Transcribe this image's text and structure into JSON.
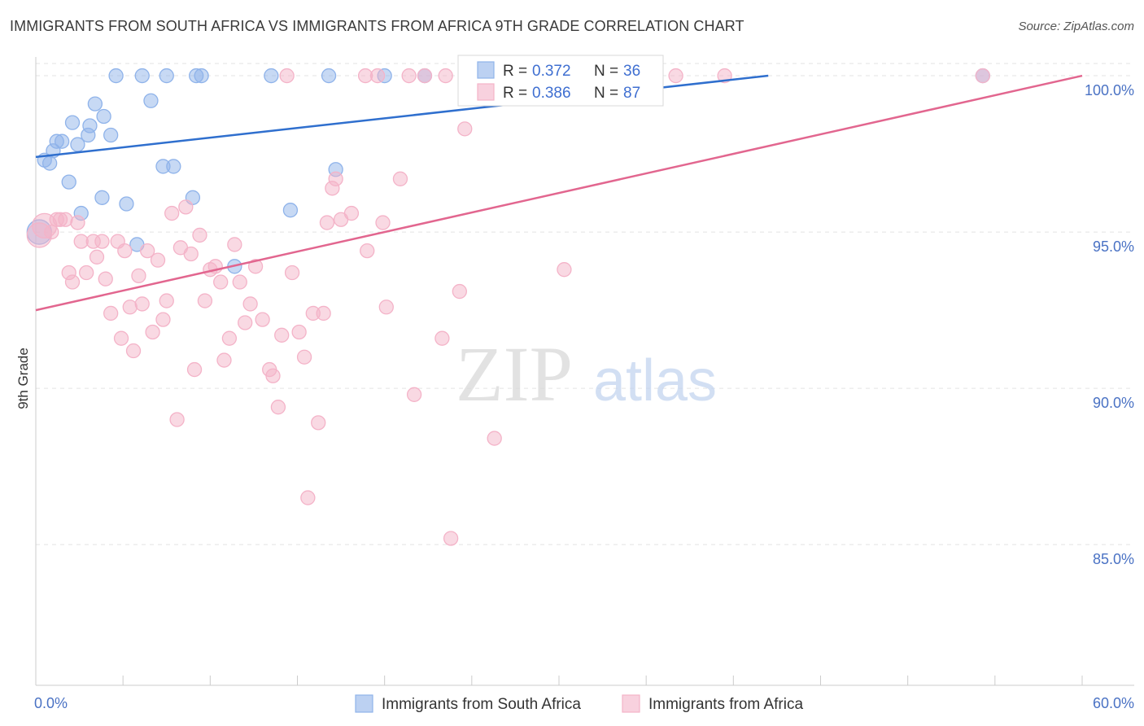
{
  "title": "IMMIGRANTS FROM SOUTH AFRICA VS IMMIGRANTS FROM AFRICA 9TH GRADE CORRELATION CHART",
  "source": "Source: ZipAtlas.com",
  "watermark": {
    "zip": "ZIP",
    "atlas": "atlas"
  },
  "chart_data": {
    "type": "scatter",
    "ylabel": "9th Grade",
    "xlabel": "",
    "xlim": [
      0,
      60
    ],
    "ylim": [
      80.5,
      100.6
    ],
    "x_tick_labels": [
      {
        "value": 0,
        "label": "0.0%"
      },
      {
        "value": 60,
        "label": "60.0%"
      }
    ],
    "y_ticks": [
      {
        "value": 100,
        "label": "100.0%"
      },
      {
        "value": 95,
        "label": "95.0%"
      },
      {
        "value": 90,
        "label": "90.0%"
      },
      {
        "value": 85,
        "label": "85.0%"
      }
    ],
    "grid": true,
    "legend_position": "top-center",
    "series": [
      {
        "name": "Immigrants from South Africa",
        "color": "#8fb3ea",
        "line_color": "#2f6fce",
        "R": "0.372",
        "N": "36",
        "trend": {
          "x": [
            0,
            42
          ],
          "y": [
            97.4,
            100.0
          ]
        },
        "points": [
          {
            "x": 0.2,
            "y": 95.0,
            "big": true
          },
          {
            "x": 0.5,
            "y": 97.3
          },
          {
            "x": 0.8,
            "y": 97.2
          },
          {
            "x": 1.0,
            "y": 97.6
          },
          {
            "x": 1.2,
            "y": 97.9
          },
          {
            "x": 1.5,
            "y": 97.9
          },
          {
            "x": 1.9,
            "y": 96.6
          },
          {
            "x": 2.1,
            "y": 98.5
          },
          {
            "x": 2.4,
            "y": 97.8
          },
          {
            "x": 2.6,
            "y": 95.6
          },
          {
            "x": 3.0,
            "y": 98.1
          },
          {
            "x": 3.1,
            "y": 98.4
          },
          {
            "x": 3.4,
            "y": 99.1
          },
          {
            "x": 3.8,
            "y": 96.1
          },
          {
            "x": 3.9,
            "y": 98.7
          },
          {
            "x": 4.3,
            "y": 98.1
          },
          {
            "x": 4.6,
            "y": 100.0
          },
          {
            "x": 5.2,
            "y": 95.9
          },
          {
            "x": 5.8,
            "y": 94.6
          },
          {
            "x": 6.1,
            "y": 100.0
          },
          {
            "x": 6.6,
            "y": 99.2
          },
          {
            "x": 7.3,
            "y": 97.1
          },
          {
            "x": 7.5,
            "y": 100.0
          },
          {
            "x": 7.9,
            "y": 97.1
          },
          {
            "x": 9.0,
            "y": 96.1
          },
          {
            "x": 9.2,
            "y": 100.0
          },
          {
            "x": 9.5,
            "y": 100.0
          },
          {
            "x": 11.4,
            "y": 93.9
          },
          {
            "x": 13.5,
            "y": 100.0
          },
          {
            "x": 14.6,
            "y": 95.7
          },
          {
            "x": 16.8,
            "y": 100.0
          },
          {
            "x": 17.2,
            "y": 97.0
          },
          {
            "x": 20.0,
            "y": 100.0
          },
          {
            "x": 22.3,
            "y": 100.0
          },
          {
            "x": 25.8,
            "y": 100.0
          },
          {
            "x": 54.3,
            "y": 100.0
          }
        ]
      },
      {
        "name": "Immigrants from Africa",
        "color": "#f4b3c8",
        "line_color": "#e2668f",
        "R": "0.386",
        "N": "87",
        "trend": {
          "x": [
            0,
            60
          ],
          "y": [
            92.5,
            100.0
          ]
        },
        "points": [
          {
            "x": 0.2,
            "y": 94.9,
            "big": true
          },
          {
            "x": 0.5,
            "y": 95.2,
            "big": true
          },
          {
            "x": 0.9,
            "y": 95.0
          },
          {
            "x": 1.2,
            "y": 95.4
          },
          {
            "x": 1.4,
            "y": 95.4
          },
          {
            "x": 1.7,
            "y": 95.4
          },
          {
            "x": 1.9,
            "y": 93.7
          },
          {
            "x": 2.1,
            "y": 93.4
          },
          {
            "x": 2.4,
            "y": 95.3
          },
          {
            "x": 2.6,
            "y": 94.7
          },
          {
            "x": 2.9,
            "y": 93.7
          },
          {
            "x": 3.3,
            "y": 94.7
          },
          {
            "x": 3.5,
            "y": 94.2
          },
          {
            "x": 3.8,
            "y": 94.7
          },
          {
            "x": 4.0,
            "y": 93.5
          },
          {
            "x": 4.3,
            "y": 92.4
          },
          {
            "x": 4.7,
            "y": 94.7
          },
          {
            "x": 4.9,
            "y": 91.6
          },
          {
            "x": 5.1,
            "y": 94.4
          },
          {
            "x": 5.4,
            "y": 92.6
          },
          {
            "x": 5.6,
            "y": 91.2
          },
          {
            "x": 5.9,
            "y": 93.6
          },
          {
            "x": 6.1,
            "y": 92.7
          },
          {
            "x": 6.4,
            "y": 94.4
          },
          {
            "x": 6.7,
            "y": 91.8
          },
          {
            "x": 7.0,
            "y": 94.1
          },
          {
            "x": 7.3,
            "y": 92.2
          },
          {
            "x": 7.5,
            "y": 92.8
          },
          {
            "x": 7.8,
            "y": 95.6
          },
          {
            "x": 8.1,
            "y": 89.0
          },
          {
            "x": 8.3,
            "y": 94.5
          },
          {
            "x": 8.6,
            "y": 95.8
          },
          {
            "x": 8.9,
            "y": 94.3
          },
          {
            "x": 9.1,
            "y": 90.6
          },
          {
            "x": 9.4,
            "y": 94.9
          },
          {
            "x": 9.7,
            "y": 92.8
          },
          {
            "x": 10.0,
            "y": 93.8
          },
          {
            "x": 10.3,
            "y": 93.9
          },
          {
            "x": 10.6,
            "y": 93.4
          },
          {
            "x": 10.8,
            "y": 90.9
          },
          {
            "x": 11.1,
            "y": 91.6
          },
          {
            "x": 11.4,
            "y": 94.6
          },
          {
            "x": 11.7,
            "y": 93.4
          },
          {
            "x": 12.0,
            "y": 92.1
          },
          {
            "x": 12.3,
            "y": 92.7
          },
          {
            "x": 12.6,
            "y": 93.9
          },
          {
            "x": 13.0,
            "y": 92.2
          },
          {
            "x": 13.4,
            "y": 90.6
          },
          {
            "x": 13.6,
            "y": 90.4
          },
          {
            "x": 13.9,
            "y": 89.4
          },
          {
            "x": 14.1,
            "y": 91.7
          },
          {
            "x": 14.4,
            "y": 100.0
          },
          {
            "x": 14.7,
            "y": 93.7
          },
          {
            "x": 15.1,
            "y": 91.8
          },
          {
            "x": 15.4,
            "y": 91.0
          },
          {
            "x": 15.6,
            "y": 86.5
          },
          {
            "x": 15.9,
            "y": 92.4
          },
          {
            "x": 16.2,
            "y": 88.9
          },
          {
            "x": 16.5,
            "y": 92.4
          },
          {
            "x": 16.7,
            "y": 95.3
          },
          {
            "x": 17.0,
            "y": 96.4
          },
          {
            "x": 17.2,
            "y": 96.7
          },
          {
            "x": 17.5,
            "y": 95.4
          },
          {
            "x": 18.1,
            "y": 95.6
          },
          {
            "x": 18.9,
            "y": 100.0
          },
          {
            "x": 19.0,
            "y": 94.4
          },
          {
            "x": 19.6,
            "y": 100.0
          },
          {
            "x": 19.9,
            "y": 95.3
          },
          {
            "x": 20.1,
            "y": 92.6
          },
          {
            "x": 20.9,
            "y": 96.7
          },
          {
            "x": 21.4,
            "y": 100.0
          },
          {
            "x": 21.7,
            "y": 89.8
          },
          {
            "x": 22.3,
            "y": 100.0
          },
          {
            "x": 23.3,
            "y": 91.6
          },
          {
            "x": 23.5,
            "y": 100.0
          },
          {
            "x": 23.8,
            "y": 85.2
          },
          {
            "x": 24.3,
            "y": 93.1
          },
          {
            "x": 24.6,
            "y": 98.3
          },
          {
            "x": 24.8,
            "y": 100.0
          },
          {
            "x": 26.3,
            "y": 88.4
          },
          {
            "x": 29.3,
            "y": 100.0
          },
          {
            "x": 30.3,
            "y": 93.8
          },
          {
            "x": 31.7,
            "y": 100.0
          },
          {
            "x": 33.0,
            "y": 100.0
          },
          {
            "x": 36.7,
            "y": 100.0
          },
          {
            "x": 39.5,
            "y": 100.0
          },
          {
            "x": 54.3,
            "y": 100.0
          }
        ]
      }
    ]
  }
}
